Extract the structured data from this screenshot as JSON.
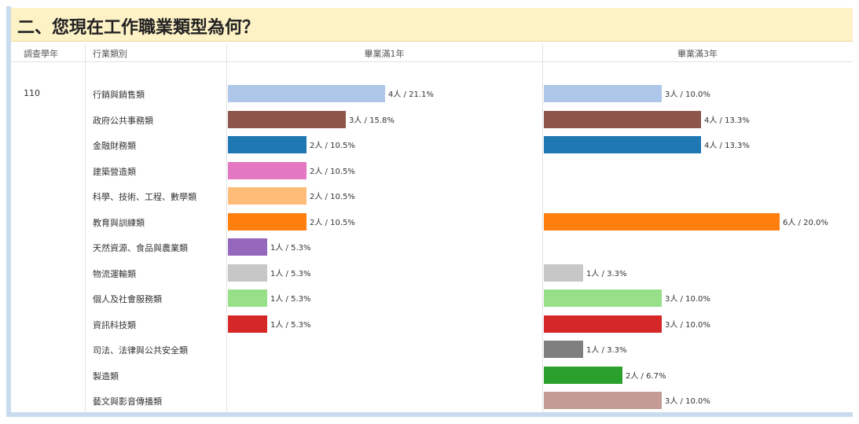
{
  "header": {
    "title": "二、您現在工作職業類型為何？"
  },
  "table": {
    "columns": [
      "調查學年",
      "行業類別",
      "畢業滿1年",
      "畢業滿3年"
    ],
    "year": "110",
    "rows": [
      {
        "category": "行銷與銷售類",
        "color": "#aec7e8",
        "y1_count": 4,
        "y1_percent": 21.1,
        "y1_label": "4人 / 21.1%",
        "y3_count": 3,
        "y3_percent": 10.0,
        "y3_label": "3人 / 10.0%"
      },
      {
        "category": "政府公共事務類",
        "color": "#8c564b",
        "y1_count": 3,
        "y1_percent": 15.8,
        "y1_label": "3人 / 15.8%",
        "y3_count": 4,
        "y3_percent": 13.3,
        "y3_label": "4人 / 13.3%"
      },
      {
        "category": "金融財務類",
        "color": "#1f77b4",
        "y1_count": 2,
        "y1_percent": 10.5,
        "y1_label": "2人 / 10.5%",
        "y3_count": 4,
        "y3_percent": 13.3,
        "y3_label": "4人 / 13.3%"
      },
      {
        "category": "建築營造類",
        "color": "#e377c2",
        "y1_count": 2,
        "y1_percent": 10.5,
        "y1_label": "2人 / 10.5%",
        "y3_count": null,
        "y3_percent": null,
        "y3_label": null
      },
      {
        "category": "科學、技術、工程、數學類",
        "color": "#ffbb78",
        "y1_count": 2,
        "y1_percent": 10.5,
        "y1_label": "2人 / 10.5%",
        "y3_count": null,
        "y3_percent": null,
        "y3_label": null
      },
      {
        "category": "教育與訓練類",
        "color": "#ff7f0e",
        "y1_count": 2,
        "y1_percent": 10.5,
        "y1_label": "2人 / 10.5%",
        "y3_count": 6,
        "y3_percent": 20.0,
        "y3_label": "6人 / 20.0%"
      },
      {
        "category": "天然資源、食品與農業類",
        "color": "#9467bd",
        "y1_count": 1,
        "y1_percent": 5.3,
        "y1_label": "1人 / 5.3%",
        "y3_count": null,
        "y3_percent": null,
        "y3_label": null
      },
      {
        "category": "物流運輸類",
        "color": "#c7c7c7",
        "y1_count": 1,
        "y1_percent": 5.3,
        "y1_label": "1人 / 5.3%",
        "y3_count": 1,
        "y3_percent": 3.3,
        "y3_label": "1人 / 3.3%"
      },
      {
        "category": "個人及社會服務類",
        "color": "#98df8a",
        "y1_count": 1,
        "y1_percent": 5.3,
        "y1_label": "1人 / 5.3%",
        "y3_count": 3,
        "y3_percent": 10.0,
        "y3_label": "3人 / 10.0%"
      },
      {
        "category": "資訊科技類",
        "color": "#d62728",
        "y1_count": 1,
        "y1_percent": 5.3,
        "y1_label": "1人 / 5.3%",
        "y3_count": 3,
        "y3_percent": 10.0,
        "y3_label": "3人 / 10.0%"
      },
      {
        "category": "司法、法律與公共安全類",
        "color": "#7f7f7f",
        "y1_count": null,
        "y1_percent": null,
        "y1_label": null,
        "y3_count": 1,
        "y3_percent": 3.3,
        "y3_label": "1人 / 3.3%"
      },
      {
        "category": "製造類",
        "color": "#2ca02c",
        "y1_count": null,
        "y1_percent": null,
        "y1_label": null,
        "y3_count": 2,
        "y3_percent": 6.7,
        "y3_label": "2人 / 6.7%"
      },
      {
        "category": "藝文與影音傳播類",
        "color": "#c49c94",
        "y1_count": null,
        "y1_percent": null,
        "y1_label": null,
        "y3_count": 3,
        "y3_percent": 10.0,
        "y3_label": "3人 / 10.0%"
      }
    ]
  }
}
